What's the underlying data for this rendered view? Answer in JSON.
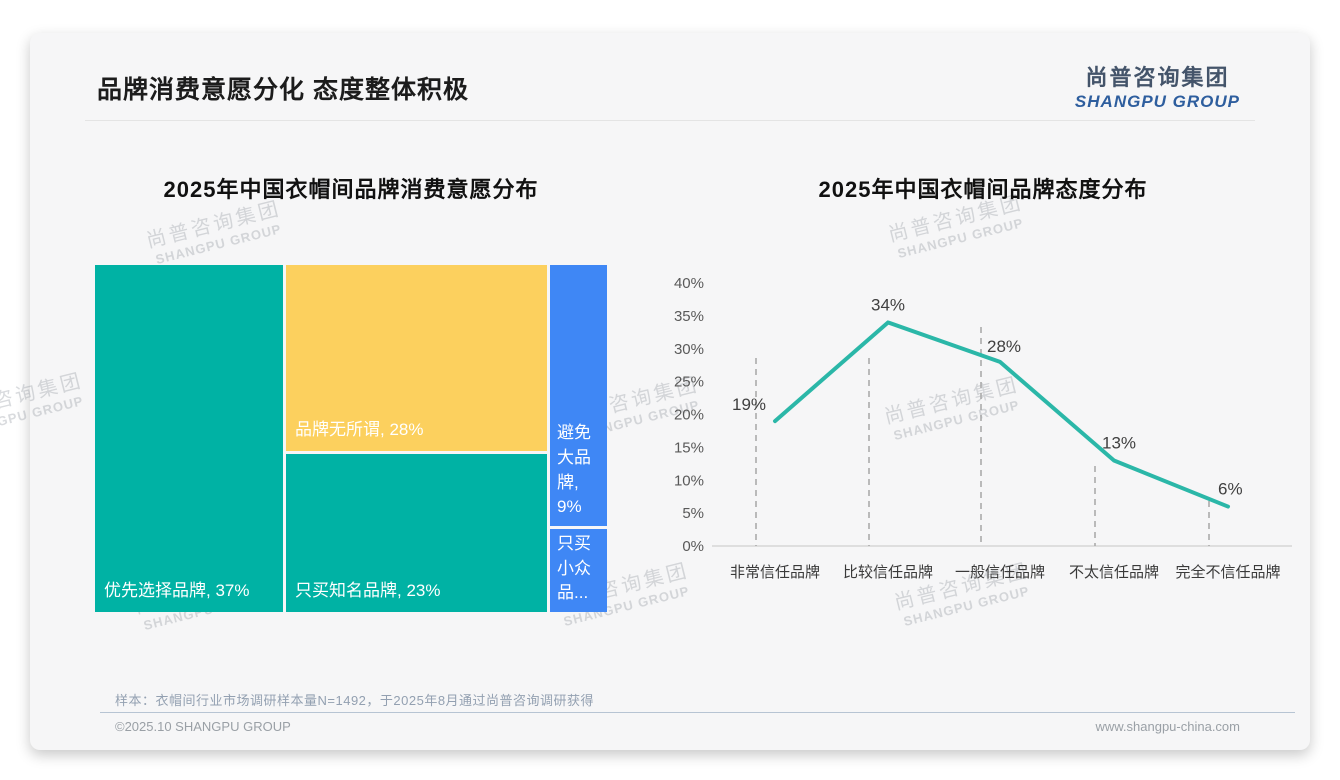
{
  "page": {
    "title": "品牌消费意愿分化 态度整体积极",
    "logo": {
      "cn": "尚普咨询集团",
      "en": "SHANGPU GROUP"
    },
    "watermark": {
      "cn": "尚普咨询集团",
      "en": "SHANGPU GROUP"
    },
    "footer": {
      "sample_note": "样本：衣帽间行业市场调研样本量N=1492，于2025年8月通过尚普咨询调研获得",
      "copyright": "©2025.10 SHANGPU GROUP",
      "website": "www.shangpu-china.com"
    }
  },
  "colors": {
    "teal": "#00b2a4",
    "yellow": "#fcd05e",
    "blue": "#3f87f5",
    "line_teal": "#2bb7a8",
    "logo_blue": "#2e5e9e",
    "card_bg": "#f6f6f7"
  },
  "chart_data": [
    {
      "type": "treemap",
      "title": "2025年中国衣帽间品牌消费意愿分布",
      "items": [
        {
          "label": "优先选择品牌",
          "value": 37,
          "display": "优先选择品牌, 37%",
          "color": "#00b2a4"
        },
        {
          "label": "品牌无所谓",
          "value": 28,
          "display": "品牌无所谓, 28%",
          "color": "#fcd05e"
        },
        {
          "label": "只买知名品牌",
          "value": 23,
          "display": "只买知名品牌, 23%",
          "color": "#00b2a4"
        },
        {
          "label": "避免大品牌",
          "value": 9,
          "display": "避免大品牌, 9%",
          "display_lines": [
            "避免",
            "大品",
            "牌,",
            "9%"
          ],
          "color": "#3f87f5"
        },
        {
          "label": "只买小众品牌",
          "display": "只买小众品...",
          "display_lines": [
            "只买",
            "小众",
            "品..."
          ],
          "color": "#3f87f5"
        }
      ]
    },
    {
      "type": "line",
      "title": "2025年中国衣帽间品牌态度分布",
      "categories": [
        "非常信任品牌",
        "比较信任品牌",
        "一般信任品牌",
        "不太信任品牌",
        "完全不信任品牌"
      ],
      "values": [
        19,
        34,
        28,
        13,
        6
      ],
      "point_labels": [
        "19%",
        "34%",
        "28%",
        "13%",
        "6%"
      ],
      "y_axis": {
        "ticks": [
          "0%",
          "5%",
          "10%",
          "15%",
          "20%",
          "25%",
          "30%",
          "35%",
          "40%"
        ],
        "ylim": [
          0,
          40
        ]
      },
      "grid": "dashed vertical drop lines",
      "legend": "none"
    }
  ]
}
